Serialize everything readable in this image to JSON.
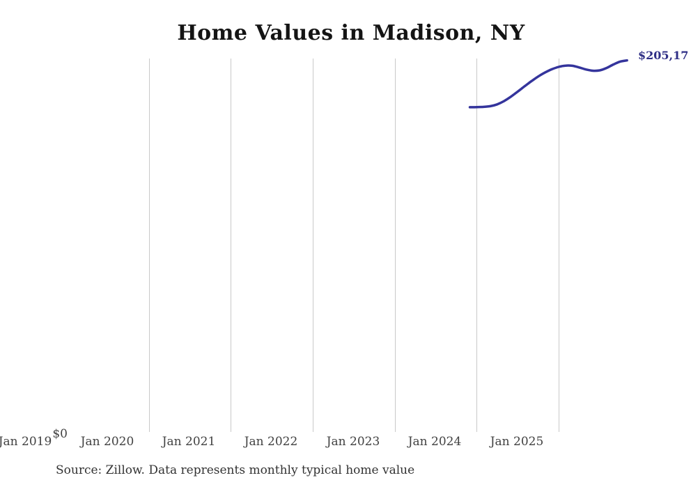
{
  "chart_data": {
    "type": "line",
    "title": "Home Values in Madison, NY",
    "source_note": "Source: Zillow. Data represents monthly typical home value",
    "x_tick_labels": [
      "Jan 2019",
      "Jan 2020",
      "Jan 2021",
      "Jan 2022",
      "Jan 2023",
      "Jan 2024",
      "Jan 2025"
    ],
    "y_tick_labels": [
      "$0"
    ],
    "end_label": "$205,17",
    "grid": "vertical-gridlines-only",
    "legend": "none",
    "x_range": [
      "Jan 2019",
      "Nov 2025"
    ],
    "ylim": [
      0,
      206500
    ],
    "series": [
      {
        "name": "Monthly typical home value",
        "x_months": [
          "Dec 2023",
          "Jan 2024",
          "Feb 2024",
          "Mar 2024",
          "Apr 2024",
          "May 2024",
          "Jun 2024",
          "Jul 2024",
          "Aug 2024",
          "Sep 2024",
          "Oct 2024",
          "Nov 2024",
          "Dec 2024",
          "Jan 2025",
          "Feb 2025",
          "Mar 2025",
          "Apr 2025",
          "May 2025",
          "Jun 2025",
          "Jul 2025",
          "Aug 2025",
          "Sep 2025",
          "Oct 2025",
          "Nov 2025"
        ],
        "values": [
          179400,
          179500,
          179600,
          180000,
          181000,
          182800,
          185200,
          188000,
          190900,
          193700,
          196300,
          198500,
          200300,
          201600,
          202300,
          202200,
          201300,
          200200,
          199500,
          199700,
          201000,
          202900,
          204500,
          205170
        ]
      }
    ],
    "colors": {
      "line": "#34349c",
      "end_label": "#2e2e85",
      "gridline": "#c9c9c9",
      "tick_text": "#414141",
      "title_text": "#141414",
      "source_text": "#323232",
      "background": "#ffffff"
    }
  }
}
